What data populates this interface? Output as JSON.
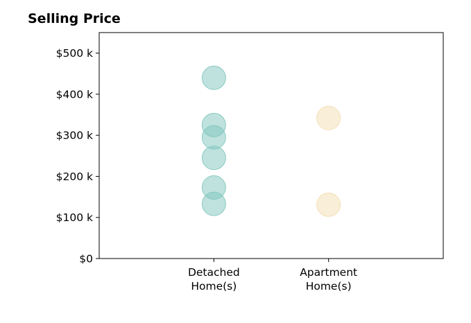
{
  "chart_data": {
    "type": "scatter",
    "title": "Selling Price",
    "xlabel": "",
    "ylabel": "",
    "categories": [
      "Detached\nHome(s)",
      "Apartment\nHome(s)"
    ],
    "xlim": [
      -1,
      2
    ],
    "ylim": [
      0,
      550000
    ],
    "y_ticks": [
      0,
      100000,
      200000,
      300000,
      400000,
      500000
    ],
    "y_tick_labels": [
      "$0",
      "$100 k",
      "$200 k",
      "$300 k",
      "$400 k",
      "$500 k"
    ],
    "grid": false,
    "legend": "none",
    "series": [
      {
        "category": "Detached\nHome(s)",
        "color": "#7fc6bd",
        "values": [
          440000,
          325000,
          295000,
          245000,
          173000,
          133000
        ]
      },
      {
        "category": "Apartment\nHome(s)",
        "color": "#f3deb0",
        "values": [
          342000,
          131000
        ]
      }
    ]
  }
}
